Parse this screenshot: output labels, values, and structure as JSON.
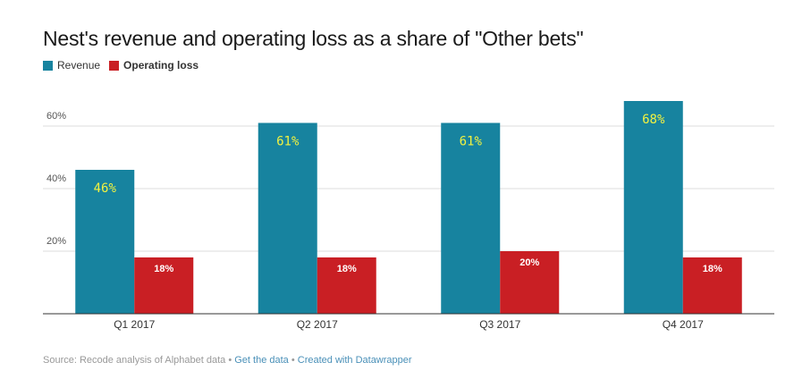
{
  "title": "Nest's revenue and operating loss as a share of \"Other bets\"",
  "legend": [
    {
      "label": "Revenue",
      "color": "#17839f"
    },
    {
      "label": "Operating loss",
      "color": "#c91f24"
    }
  ],
  "footer": {
    "source": "Source: Recode analysis of Alphabet data",
    "separator": "•",
    "get_data": "Get the data",
    "created_with": "Created with Datawrapper"
  },
  "chart_data": {
    "type": "bar",
    "categories": [
      "Q1 2017",
      "Q2 2017",
      "Q3 2017",
      "Q4 2017"
    ],
    "series": [
      {
        "name": "Revenue",
        "color": "#17839f",
        "values": [
          46,
          61,
          61,
          68
        ],
        "labels": [
          "46%",
          "61%",
          "61%",
          "68%"
        ],
        "label_color": "#f2f240"
      },
      {
        "name": "Operating loss",
        "color": "#c91f24",
        "values": [
          18,
          18,
          20,
          18
        ],
        "labels": [
          "18%",
          "18%",
          "20%",
          "18%"
        ],
        "label_color": "#ffffff"
      }
    ],
    "yticks": [
      20,
      40,
      60
    ],
    "ytick_labels": [
      "20%",
      "40%",
      "60%"
    ],
    "ylim": [
      0,
      70
    ],
    "grid": true
  }
}
